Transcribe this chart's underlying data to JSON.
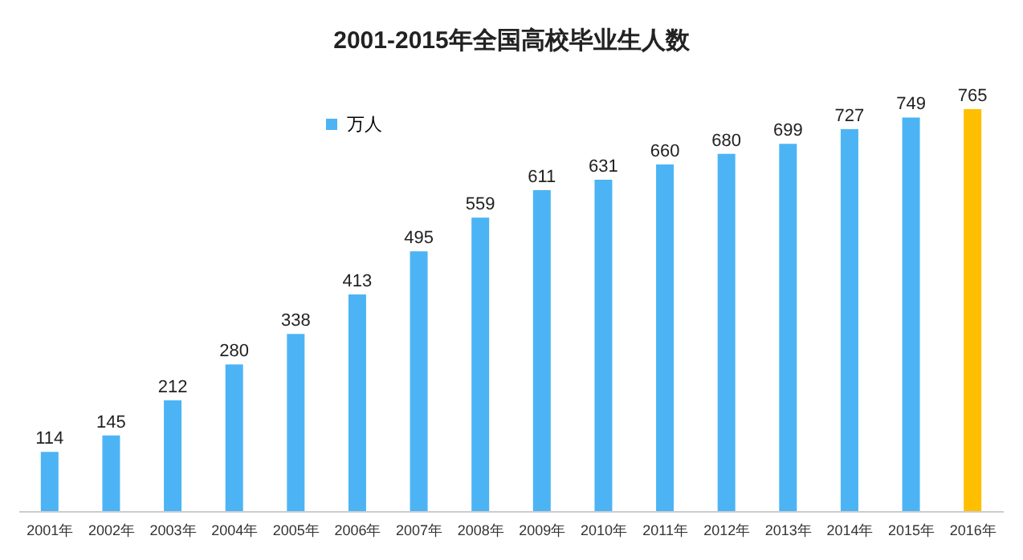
{
  "chart_data": {
    "type": "bar",
    "title": "2001-2015年全国高校毕业生人数",
    "categories": [
      "2001年",
      "2002年",
      "2003年",
      "2004年",
      "2005年",
      "2006年",
      "2007年",
      "2008年",
      "2009年",
      "2010年",
      "2011年",
      "2012年",
      "2013年",
      "2014年",
      "2015年",
      "2016年"
    ],
    "series": [
      {
        "name": "万人",
        "color": "#4cb4f4",
        "colors": [
          "#4cb4f4",
          "#4cb4f4",
          "#4cb4f4",
          "#4cb4f4",
          "#4cb4f4",
          "#4cb4f4",
          "#4cb4f4",
          "#4cb4f4",
          "#4cb4f4",
          "#4cb4f4",
          "#4cb4f4",
          "#4cb4f4",
          "#4cb4f4",
          "#4cb4f4",
          "#4cb4f4",
          "#ffbf00"
        ],
        "values": [
          114,
          145,
          212,
          280,
          338,
          413,
          495,
          559,
          611,
          631,
          660,
          680,
          699,
          727,
          749,
          765
        ]
      }
    ],
    "data_labels": true,
    "legend": "top left",
    "grid": false
  }
}
